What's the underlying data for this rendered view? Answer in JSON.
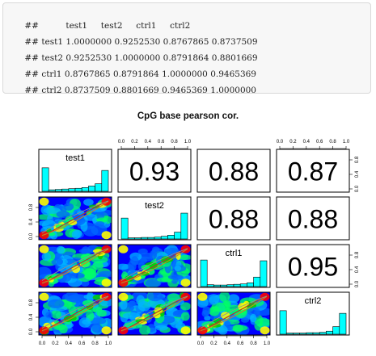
{
  "code_output": {
    "prefix": "##",
    "header": [
      "test1",
      "test2",
      "ctrl1",
      "ctrl2"
    ],
    "rows": [
      {
        "name": "test1",
        "values": [
          "1.0000000",
          "0.9252530",
          "0.8767865",
          "0.8737509"
        ]
      },
      {
        "name": "test2",
        "values": [
          "0.9252530",
          "1.0000000",
          "0.8791864",
          "0.8801669"
        ]
      },
      {
        "name": "ctrl1",
        "values": [
          "0.8767865",
          "0.8791864",
          "1.0000000",
          "0.9465369"
        ]
      },
      {
        "name": "ctrl2",
        "values": [
          "0.8737509",
          "0.8801669",
          "0.9465369",
          "1.0000000"
        ]
      }
    ]
  },
  "chart_data": {
    "type": "pairs",
    "title": "CpG base pearson cor.",
    "variables": [
      "test1",
      "test2",
      "ctrl1",
      "ctrl2"
    ],
    "correlation_labels": [
      {
        "row": 0,
        "col": 1,
        "text": "0.93"
      },
      {
        "row": 0,
        "col": 2,
        "text": "0.88"
      },
      {
        "row": 0,
        "col": 3,
        "text": "0.87"
      },
      {
        "row": 1,
        "col": 2,
        "text": "0.88"
      },
      {
        "row": 1,
        "col": 3,
        "text": "0.88"
      },
      {
        "row": 2,
        "col": 3,
        "text": "0.95"
      }
    ],
    "axis_range": [
      0,
      1
    ],
    "x_ticks": [
      "0.0",
      "0.2",
      "0.4",
      "0.6",
      "0.8",
      "1.0"
    ],
    "y_ticks": [
      "0.0",
      "0.4",
      "0.8"
    ],
    "histogram_bins": [
      0.05,
      0.15,
      0.25,
      0.35,
      0.45,
      0.55,
      0.65,
      0.75,
      0.85,
      0.95
    ],
    "histograms": [
      {
        "variable": "test1",
        "heights": [
          0.62,
          0.04,
          0.05,
          0.06,
          0.07,
          0.08,
          0.1,
          0.14,
          0.2,
          0.55
        ]
      },
      {
        "variable": "test2",
        "heights": [
          0.55,
          0.03,
          0.03,
          0.04,
          0.04,
          0.05,
          0.07,
          0.1,
          0.18,
          0.68
        ]
      },
      {
        "variable": "ctrl1",
        "heights": [
          0.7,
          0.05,
          0.04,
          0.04,
          0.05,
          0.06,
          0.07,
          0.1,
          0.25,
          0.68
        ]
      },
      {
        "variable": "ctrl2",
        "heights": [
          0.62,
          0.03,
          0.03,
          0.03,
          0.04,
          0.04,
          0.05,
          0.08,
          0.2,
          0.55
        ]
      }
    ],
    "histogram_fill": "#00ffff",
    "density_colors": [
      "#0000ff",
      "#0066ff",
      "#00b4ff",
      "#00ff66",
      "#00cc00",
      "#ffff00",
      "#ff8800",
      "#ff0000"
    ],
    "fit_line_colors": [
      "#b03030",
      "#d08020",
      "#909090"
    ],
    "grid": false,
    "legend": "none"
  }
}
